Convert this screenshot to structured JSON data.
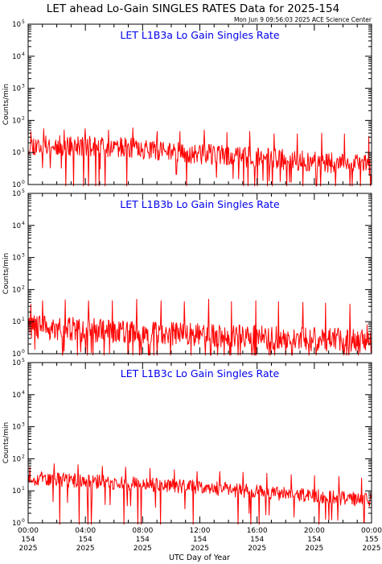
{
  "title": "LET ahead Lo-Gain SINGLES RATES Data for 2025-154",
  "timestamp": "Mon Jun  9 09:56:03 2025 ACE Science Center",
  "colors": {
    "series": "#ff0000",
    "panel_title": "#0000ee",
    "axes": "#000000"
  },
  "chart_data": [
    {
      "type": "line",
      "title": "LET L1B3a Lo Gain Singles Rate",
      "ylabel": "Counts/min",
      "xlabel": "UTC Day of Year",
      "yscale": "log",
      "ylim": [
        1,
        100000
      ],
      "xlim": [
        0,
        24
      ],
      "baseline": [
        [
          0,
          17
        ],
        [
          6,
          15
        ],
        [
          12,
          9
        ],
        [
          18,
          6
        ],
        [
          24,
          4
        ]
      ],
      "noise": 0.32,
      "spikes": [
        [
          0.2,
          45
        ],
        [
          1.1,
          55
        ],
        [
          2.5,
          50
        ],
        [
          4.0,
          55
        ],
        [
          5.6,
          50
        ],
        [
          7.3,
          58
        ],
        [
          9.0,
          45
        ],
        [
          10.6,
          45
        ],
        [
          12.3,
          50
        ],
        [
          13.9,
          42
        ],
        [
          15.5,
          45
        ],
        [
          17.2,
          38
        ],
        [
          18.8,
          38
        ],
        [
          20.5,
          40
        ],
        [
          22.1,
          38
        ],
        [
          23.8,
          32
        ]
      ],
      "seed": 11
    },
    {
      "type": "line",
      "title": "LET L1B3b Lo Gain Singles Rate",
      "ylabel": "Counts/min",
      "xlabel": "UTC Day of Year",
      "yscale": "log",
      "ylim": [
        1,
        100000
      ],
      "xlim": [
        0,
        24
      ],
      "baseline": [
        [
          0,
          7
        ],
        [
          6,
          5
        ],
        [
          12,
          4
        ],
        [
          18,
          3
        ],
        [
          24,
          2.5
        ]
      ],
      "noise": 0.38,
      "spikes": [
        [
          0.2,
          35
        ],
        [
          1.0,
          45
        ],
        [
          2.6,
          48
        ],
        [
          4.2,
          45
        ],
        [
          5.9,
          45
        ],
        [
          7.6,
          50
        ],
        [
          9.3,
          45
        ],
        [
          10.9,
          42
        ],
        [
          12.6,
          50
        ],
        [
          14.2,
          42
        ],
        [
          15.9,
          45
        ],
        [
          17.5,
          42
        ],
        [
          19.2,
          40
        ],
        [
          20.8,
          38
        ],
        [
          22.5,
          35
        ],
        [
          23.7,
          8
        ]
      ],
      "seed": 29
    },
    {
      "type": "line",
      "title": "LET L1B3c Lo Gain Singles Rate",
      "ylabel": "Counts/min",
      "xlabel": "UTC Day of Year",
      "yscale": "log",
      "ylim": [
        1,
        100000
      ],
      "xlim": [
        0,
        24
      ],
      "baseline": [
        [
          0,
          25
        ],
        [
          6,
          18
        ],
        [
          12,
          13
        ],
        [
          18,
          8
        ],
        [
          24,
          5
        ]
      ],
      "noise": 0.22,
      "spikes": [
        [
          0.1,
          55
        ],
        [
          1.8,
          70
        ],
        [
          3.5,
          65
        ],
        [
          5.2,
          58
        ],
        [
          6.8,
          55
        ],
        [
          8.5,
          50
        ],
        [
          10.2,
          45
        ],
        [
          11.8,
          40
        ],
        [
          13.4,
          40
        ],
        [
          15.0,
          38
        ],
        [
          16.7,
          35
        ],
        [
          18.4,
          32
        ],
        [
          20.0,
          30
        ],
        [
          21.7,
          28
        ],
        [
          23.3,
          25
        ]
      ],
      "seed": 53
    }
  ],
  "x_axis": {
    "ticks": [
      {
        "time": "00:00",
        "day": "154",
        "year": "2025"
      },
      {
        "time": "04:00",
        "day": "154",
        "year": "2025"
      },
      {
        "time": "08:00",
        "day": "154",
        "year": "2025"
      },
      {
        "time": "12:00",
        "day": "154",
        "year": "2025"
      },
      {
        "time": "16:00",
        "day": "154",
        "year": "2025"
      },
      {
        "time": "20:00",
        "day": "154",
        "year": "2025"
      },
      {
        "time": "00:00",
        "day": "155",
        "year": "2025"
      }
    ],
    "label": "UTC Day of Year"
  }
}
